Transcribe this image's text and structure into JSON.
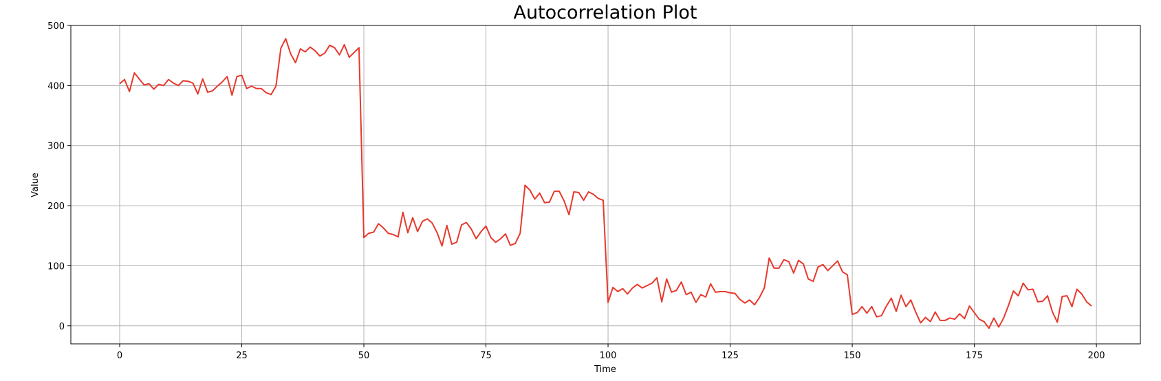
{
  "chart_data": {
    "type": "line",
    "title": "Autocorrelation Plot",
    "xlabel": "Time",
    "ylabel": "Value",
    "xlim": [
      -10,
      209
    ],
    "ylim": [
      -30,
      500
    ],
    "xticks": [
      0,
      25,
      50,
      75,
      100,
      125,
      150,
      175,
      200
    ],
    "yticks": [
      0,
      100,
      200,
      300,
      400,
      500
    ],
    "grid": true,
    "color": "#e8382c",
    "series": [
      {
        "values": [
          403,
          410,
          390,
          421,
          411,
          401,
          403,
          394,
          402,
          400,
          410,
          404,
          400,
          408,
          407,
          404,
          386,
          411,
          389,
          391,
          399,
          406,
          415,
          384,
          415,
          417,
          395,
          399,
          395,
          395,
          388,
          385,
          399,
          462,
          478,
          453,
          438,
          461,
          456,
          464,
          458,
          449,
          454,
          467,
          463,
          451,
          468,
          447,
          455,
          463,
          147,
          154,
          156,
          170,
          163,
          154,
          152,
          148,
          189,
          155,
          180,
          157,
          174,
          178,
          171,
          155,
          133,
          167,
          136,
          139,
          168,
          172,
          161,
          145,
          157,
          166,
          147,
          139,
          145,
          153,
          134,
          137,
          154,
          234,
          226,
          211,
          221,
          205,
          206,
          224,
          224,
          208,
          185,
          223,
          222,
          209,
          223,
          219,
          212,
          209,
          39,
          64,
          57,
          62,
          53,
          63,
          69,
          63,
          67,
          71,
          80,
          40,
          78,
          56,
          59,
          73,
          52,
          56,
          39,
          52,
          48,
          70,
          56,
          57,
          57,
          55,
          54,
          44,
          38,
          43,
          35,
          47,
          63,
          113,
          96,
          96,
          110,
          107,
          88,
          109,
          103,
          78,
          74,
          98,
          102,
          92,
          100,
          108,
          90,
          85,
          19,
          22,
          32,
          21,
          32,
          15,
          17,
          33,
          46,
          24,
          51,
          32,
          43,
          23,
          5,
          14,
          7,
          23,
          9,
          9,
          13,
          11,
          20,
          12,
          33,
          22,
          11,
          7,
          -4,
          13,
          -2,
          13,
          34,
          58,
          50,
          71,
          60,
          61,
          40,
          41,
          50,
          23,
          6,
          49,
          50,
          32,
          61,
          53,
          40,
          33
        ]
      }
    ]
  }
}
